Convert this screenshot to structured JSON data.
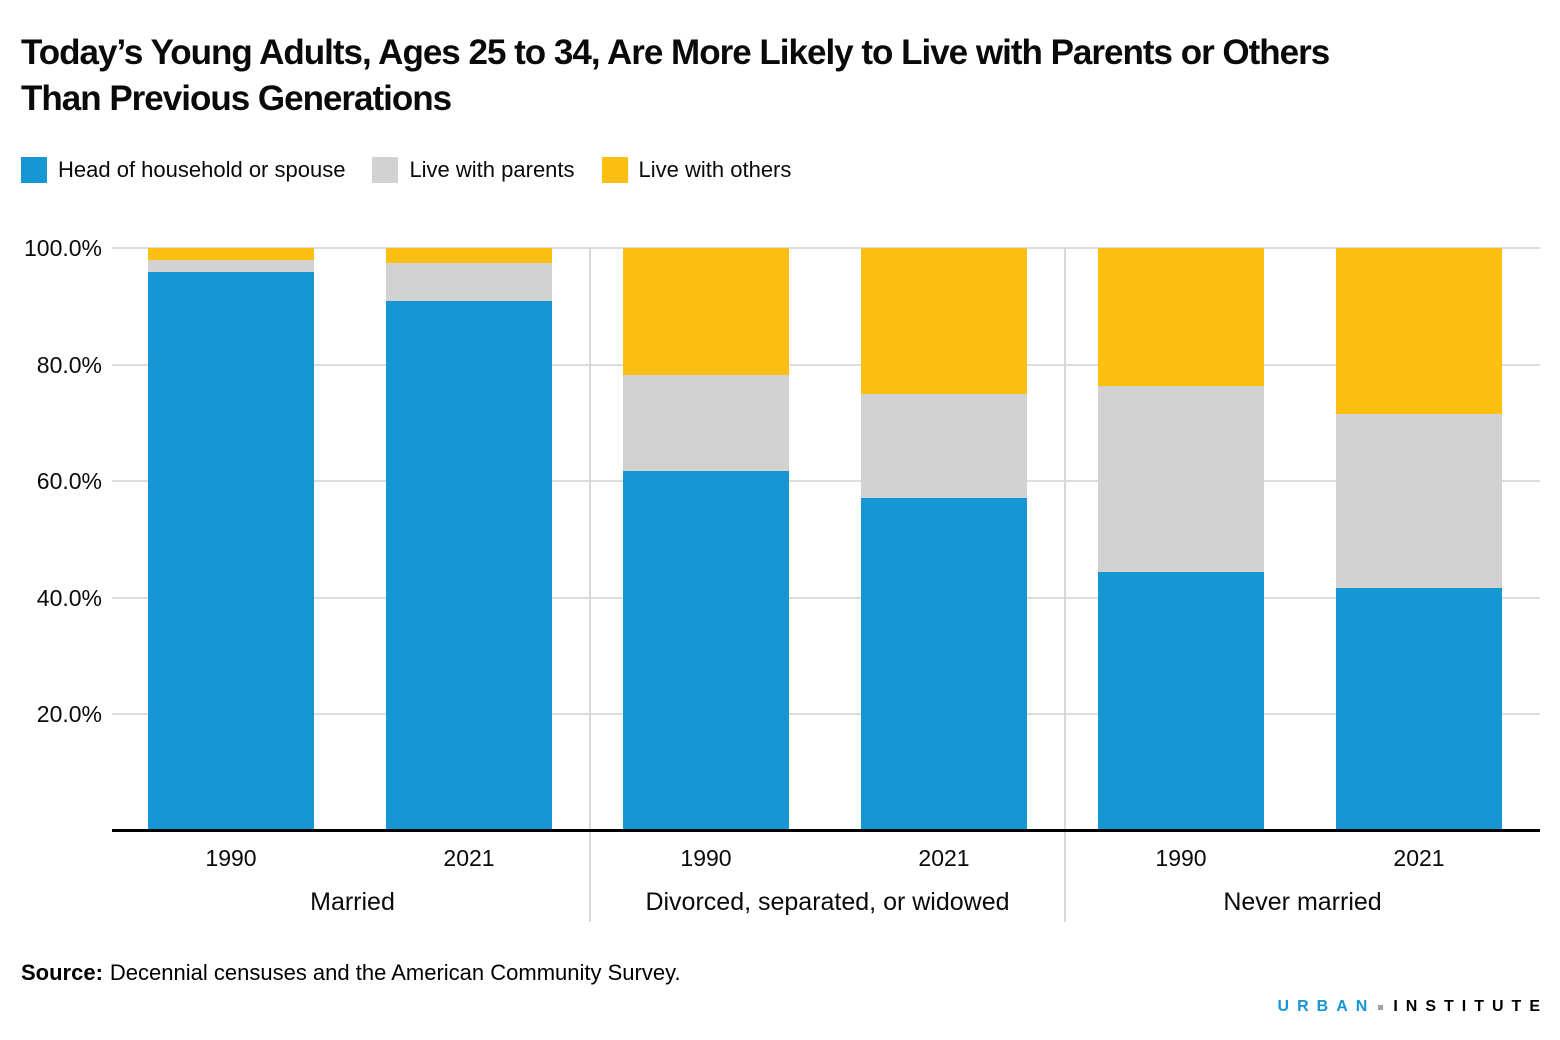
{
  "title": {
    "line1": "Today’s Young Adults, Ages 25 to 34, Are More Likely to Live with Parents or Others",
    "line2": "Than Previous Generations"
  },
  "source": {
    "label": "Source:",
    "text": "Decennial censuses and the American Community Survey."
  },
  "logo": {
    "part1": "URBAN",
    "part2": "INSTITUTE",
    "color_urban": "#1696d2",
    "color_institute": "#000000",
    "dot_color": "#98a4ac"
  },
  "chart_data": {
    "type": "bar",
    "stacked": true,
    "value_format": "percent",
    "ylim": [
      0,
      100
    ],
    "grid": true,
    "legend_position": "top-left",
    "yticks": [
      {
        "label": "100.0%",
        "value": 100
      },
      {
        "label": "80.0%",
        "value": 80
      },
      {
        "label": "60.0%",
        "value": 60
      },
      {
        "label": "40.0%",
        "value": 40
      },
      {
        "label": "20.0%",
        "value": 20
      }
    ],
    "series": [
      {
        "name": "Head of household or spouse",
        "color": "#1696d2"
      },
      {
        "name": "Live with parents",
        "color": "#d2d2d2"
      },
      {
        "name": "Live with others",
        "color": "#fdbf11"
      }
    ],
    "groups": [
      {
        "label": "Married",
        "columns": [
          {
            "year": "1990",
            "values": [
              95.8,
              2.2,
              2.0
            ]
          },
          {
            "year": "2021",
            "values": [
              90.9,
              6.6,
              2.5
            ]
          }
        ]
      },
      {
        "label": "Divorced, separated, or widowed",
        "columns": [
          {
            "year": "1990",
            "values": [
              61.8,
              16.5,
              21.7
            ]
          },
          {
            "year": "2021",
            "values": [
              57.2,
              17.7,
              25.1
            ]
          }
        ]
      },
      {
        "label": "Never married",
        "columns": [
          {
            "year": "1990",
            "values": [
              44.4,
              31.9,
              23.7
            ]
          },
          {
            "year": "2021",
            "values": [
              41.7,
              29.9,
              28.4
            ]
          }
        ]
      }
    ],
    "colors": {
      "grid": "#dcdcdc",
      "axis_line": "#000000",
      "group_separator": "#d9d9d9",
      "text": "#0a0a0a"
    }
  }
}
